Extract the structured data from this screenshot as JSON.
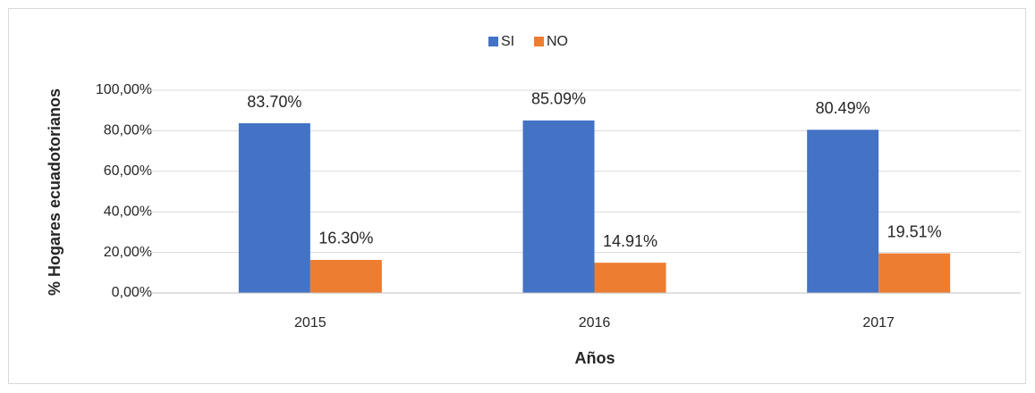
{
  "chart_data": {
    "type": "bar",
    "categories": [
      "2015",
      "2016",
      "2017"
    ],
    "series": [
      {
        "name": "SI",
        "color": "#4472c4",
        "values": [
          83.7,
          85.09,
          80.49
        ],
        "value_labels": [
          "83.70%",
          "85.09%",
          "80.49%"
        ]
      },
      {
        "name": "NO",
        "color": "#ed7d31",
        "values": [
          16.3,
          14.91,
          19.51
        ],
        "value_labels": [
          "16.30%",
          "14.91%",
          "19.51%"
        ]
      }
    ],
    "ylim": [
      0,
      100
    ],
    "yticks": [
      {
        "value": 0,
        "label": "0,00%"
      },
      {
        "value": 20,
        "label": "20,00%"
      },
      {
        "value": 40,
        "label": "40,00%"
      },
      {
        "value": 60,
        "label": "60,00%"
      },
      {
        "value": 80,
        "label": "80,00%"
      },
      {
        "value": 100,
        "label": "100,00%"
      }
    ],
    "xlabel": "Años",
    "ylabel": "% Hogares ecuadotorianos",
    "grid": true,
    "legend": "top"
  }
}
